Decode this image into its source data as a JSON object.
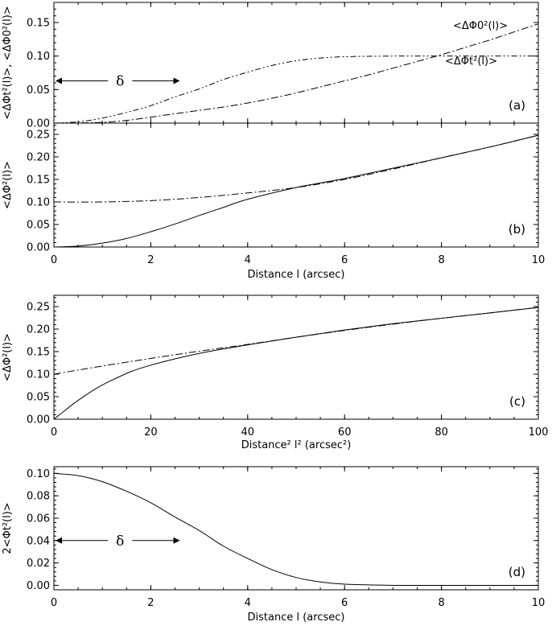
{
  "chart_data": [
    {
      "id": "a",
      "type": "line",
      "panel_label": "(a)",
      "ylabel": "<ΔΦt²(l)>, <ΔΦ0²(l)>",
      "xlabel": "",
      "xlim": [
        0,
        10
      ],
      "ylim": [
        0,
        0.18
      ],
      "xticks": [
        0,
        2,
        4,
        6,
        8,
        10
      ],
      "yticks": [
        0.0,
        0.05,
        0.1,
        0.15
      ],
      "yticklabels": [
        "0.00",
        "0.05",
        "0.10",
        "0.15"
      ],
      "series": [
        {
          "name": "<ΔΦt²(l)>",
          "style": "dash-dot-dot",
          "x": [
            0,
            0.5,
            1,
            1.5,
            2,
            2.5,
            3,
            3.5,
            4,
            4.5,
            5,
            5.5,
            6,
            7,
            8,
            9,
            10
          ],
          "y": [
            0,
            0.0019,
            0.0074,
            0.016,
            0.026,
            0.039,
            0.051,
            0.065,
            0.076,
            0.086,
            0.093,
            0.097,
            0.099,
            0.1,
            0.1,
            0.1,
            0.1
          ]
        },
        {
          "name": "<ΔΦ0²(l)>",
          "style": "dash-dot",
          "x": [
            0,
            0.5,
            1,
            1.5,
            2,
            2.5,
            3,
            3.5,
            4,
            4.5,
            5,
            5.5,
            6,
            6.5,
            7,
            7.5,
            8,
            8.5,
            9,
            9.5,
            10
          ],
          "y": [
            0,
            0.0002,
            0.0011,
            0.004,
            0.0089,
            0.014,
            0.019,
            0.024,
            0.03,
            0.037,
            0.045,
            0.054,
            0.063,
            0.072,
            0.082,
            0.092,
            0.102,
            0.113,
            0.124,
            0.136,
            0.148
          ]
        }
      ],
      "labels": {
        "phi0": "<ΔΦ0²(l)>",
        "phit": "<ΔΦt²(l)>",
        "delta": "δ"
      },
      "delta_arrow": {
        "x0": 0,
        "x1": 2.6,
        "y": 0.063
      }
    },
    {
      "id": "b",
      "type": "line",
      "panel_label": "(b)",
      "ylabel": "<ΔΦ²(l)>",
      "xlabel": "Distance l (arcsec)",
      "xlim": [
        0,
        10
      ],
      "ylim": [
        0,
        0.275
      ],
      "xticks": [
        0,
        2,
        4,
        6,
        8,
        10
      ],
      "xticklabels": [
        "0",
        "2",
        "4",
        "6",
        "8",
        "10"
      ],
      "yticks": [
        0.0,
        0.05,
        0.1,
        0.15,
        0.2,
        0.25
      ],
      "yticklabels": [
        "0.00",
        "0.05",
        "0.10",
        "0.15",
        "0.20",
        "0.25"
      ],
      "series": [
        {
          "name": "<ΔΦ²(l)>",
          "style": "solid",
          "x": [
            0,
            0.5,
            1,
            1.5,
            2,
            2.5,
            3,
            3.5,
            4,
            5,
            6,
            7,
            8,
            9,
            10
          ],
          "y": [
            0,
            0.002,
            0.0086,
            0.019,
            0.034,
            0.051,
            0.07,
            0.088,
            0.106,
            0.132,
            0.152,
            0.175,
            0.198,
            0.222,
            0.248
          ]
        },
        {
          "name": "asymptote",
          "style": "dash-dot",
          "x": [
            0,
            1,
            2,
            3,
            4,
            5,
            6,
            7,
            8,
            9,
            10
          ],
          "y": [
            0.1,
            0.1,
            0.103,
            0.11,
            0.12,
            0.132,
            0.15,
            0.173,
            0.198,
            0.222,
            0.248
          ]
        }
      ]
    },
    {
      "id": "c",
      "type": "line",
      "panel_label": "(c)",
      "ylabel": "<ΔΦ²(l)>",
      "xlabel": "Distance² l² (arcsec²)",
      "xlim": [
        0,
        100
      ],
      "ylim": [
        0,
        0.275
      ],
      "xticks": [
        0,
        20,
        40,
        60,
        80,
        100
      ],
      "xticklabels": [
        "0",
        "20",
        "40",
        "60",
        "80",
        "100"
      ],
      "yticks": [
        0.0,
        0.05,
        0.1,
        0.15,
        0.2,
        0.25
      ],
      "yticklabels": [
        "0.00",
        "0.05",
        "0.10",
        "0.15",
        "0.20",
        "0.25"
      ],
      "series": [
        {
          "name": "<ΔΦ²(l)>",
          "style": "solid",
          "x": [
            0,
            1,
            2.25,
            4,
            6.25,
            9,
            12.25,
            16,
            20,
            25,
            30,
            35,
            40,
            50,
            60,
            70,
            80,
            90,
            100
          ],
          "y": [
            0,
            0.0086,
            0.019,
            0.034,
            0.051,
            0.07,
            0.088,
            0.106,
            0.12,
            0.134,
            0.146,
            0.156,
            0.165,
            0.182,
            0.198,
            0.212,
            0.224,
            0.236,
            0.248
          ]
        },
        {
          "name": "asymptote",
          "style": "dash-dot",
          "x": [
            0,
            10,
            20,
            30,
            40,
            50,
            60,
            70,
            80,
            90,
            100
          ],
          "y": [
            0.1,
            0.118,
            0.135,
            0.151,
            0.166,
            0.182,
            0.197,
            0.211,
            0.224,
            0.236,
            0.248
          ]
        }
      ]
    },
    {
      "id": "d",
      "type": "line",
      "panel_label": "(d)",
      "ylabel": "2<Φt²(l)>",
      "xlabel": "Distance l (arcsec)",
      "xlim": [
        0,
        10
      ],
      "ylim": [
        -0.004,
        0.106
      ],
      "xticks": [
        0,
        2,
        4,
        6,
        8,
        10
      ],
      "xticklabels": [
        "0",
        "2",
        "4",
        "6",
        "8",
        "10"
      ],
      "yticks": [
        0.0,
        0.02,
        0.04,
        0.06,
        0.08,
        0.1
      ],
      "yticklabels": [
        "0.00",
        "0.02",
        "0.04",
        "0.06",
        "0.08",
        "0.10"
      ],
      "series": [
        {
          "name": "2<Φt²(l)>",
          "style": "solid",
          "x": [
            0,
            0.5,
            1,
            1.5,
            2,
            2.5,
            3,
            3.5,
            4,
            4.5,
            5,
            5.5,
            6,
            7,
            8,
            9,
            10
          ],
          "y": [
            0.1,
            0.098,
            0.0926,
            0.084,
            0.0738,
            0.061,
            0.049,
            0.035,
            0.024,
            0.014,
            0.007,
            0.003,
            0.001,
            0,
            0,
            0,
            0
          ]
        }
      ],
      "labels": {
        "delta": "δ"
      },
      "delta_arrow": {
        "x0": 0,
        "x1": 2.6,
        "y": 0.04
      }
    }
  ]
}
